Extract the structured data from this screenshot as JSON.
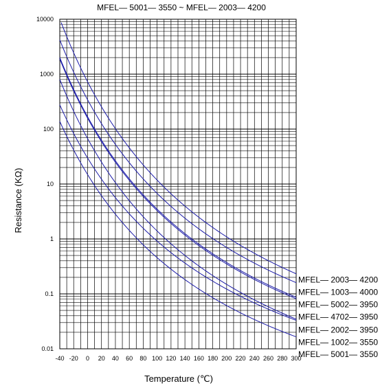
{
  "chart_data": {
    "type": "line",
    "title": "MFEL— 5001— 3550 ~ MFEL— 2003— 4200",
    "xlabel": "Temperature (℃)",
    "ylabel": "Resistance (KΩ)",
    "xlim": [
      -40,
      300
    ],
    "ylim": [
      0.01,
      10000
    ],
    "yscale": "log",
    "grid": true,
    "x_ticks": [
      "-40",
      "-20",
      "0",
      "20",
      "40",
      "60",
      "80",
      "100",
      "120",
      "140",
      "160",
      "180",
      "200",
      "220",
      "240",
      "260",
      "280",
      "300"
    ],
    "y_ticks": [
      "10000",
      "1000",
      "100",
      "10",
      "1",
      "0.1",
      "0.01"
    ],
    "line_color": "#1a1aa8",
    "legend_position": "right",
    "series": [
      {
        "name": "MFEL— 2003— 4200",
        "r25": 200,
        "b": 4200,
        "label_value": 0.18
      },
      {
        "name": "MFEL— 1003— 4000",
        "r25": 100,
        "b": 4000,
        "label_value": 0.107
      },
      {
        "name": "MFEL— 5002— 3950",
        "r25": 50,
        "b": 3950,
        "label_value": 0.064
      },
      {
        "name": "MFEL— 4702— 3950",
        "r25": 47,
        "b": 3950,
        "label_value": 0.038
      },
      {
        "name": "MFEL— 2002— 3950",
        "r25": 20,
        "b": 3950,
        "label_value": 0.022
      },
      {
        "name": "MFEL— 1002— 3550",
        "r25": 10,
        "b": 3550,
        "label_value": 0.0132
      },
      {
        "name": "MFEL— 5001— 3550",
        "r25": 5,
        "b": 3550,
        "label_value": 0.008
      }
    ]
  }
}
